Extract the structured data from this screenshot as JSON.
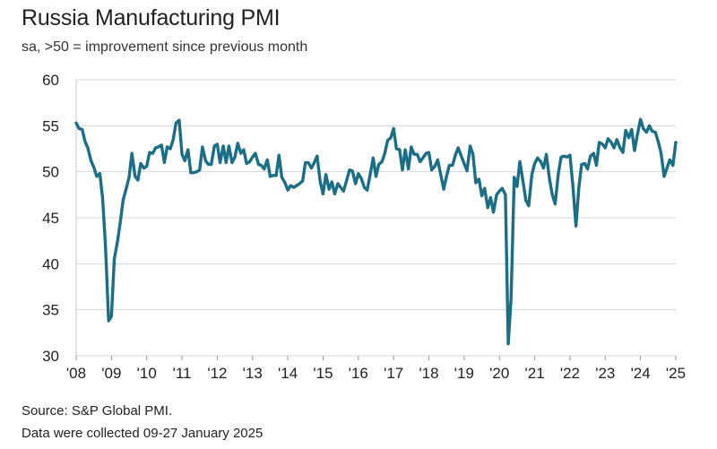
{
  "chart_data": {
    "type": "line",
    "title": "Russia Manufacturing PMI",
    "subtitle": "sa, >50 = improvement since previous month",
    "xlabel": "",
    "ylabel": "",
    "ylim": [
      30,
      60
    ],
    "yticks": [
      30,
      35,
      40,
      45,
      50,
      55,
      60
    ],
    "xlim": [
      2008.0,
      2025.0
    ],
    "xtick_values": [
      2008,
      2009,
      2010,
      2011,
      2012,
      2013,
      2014,
      2015,
      2016,
      2017,
      2018,
      2019,
      2020,
      2021,
      2022,
      2023,
      2024,
      2025
    ],
    "xtick_labels": [
      "'08",
      "'09",
      "'10",
      "'11",
      "'12",
      "'13",
      "'14",
      "'15",
      "'16",
      "'17",
      "'18",
      "'19",
      "'20",
      "'21",
      "'22",
      "'23",
      "'24",
      "'25"
    ],
    "grid": "horizontal",
    "line_color": "#1a6e85",
    "series": [
      {
        "name": "",
        "x": [
          2008.0,
          2008.08,
          2008.17,
          2008.25,
          2008.33,
          2008.42,
          2008.5,
          2008.58,
          2008.67,
          2008.75,
          2008.83,
          2008.92,
          2009.0,
          2009.08,
          2009.17,
          2009.25,
          2009.33,
          2009.42,
          2009.5,
          2009.58,
          2009.67,
          2009.75,
          2009.83,
          2009.92,
          2010.0,
          2010.08,
          2010.17,
          2010.25,
          2010.33,
          2010.42,
          2010.5,
          2010.58,
          2010.67,
          2010.75,
          2010.83,
          2010.92,
          2011.0,
          2011.08,
          2011.17,
          2011.25,
          2011.33,
          2011.42,
          2011.5,
          2011.58,
          2011.67,
          2011.75,
          2011.83,
          2011.92,
          2012.0,
          2012.08,
          2012.17,
          2012.25,
          2012.33,
          2012.42,
          2012.5,
          2012.58,
          2012.67,
          2012.75,
          2012.83,
          2012.92,
          2013.0,
          2013.08,
          2013.17,
          2013.25,
          2013.33,
          2013.42,
          2013.5,
          2013.58,
          2013.67,
          2013.75,
          2013.83,
          2013.92,
          2014.0,
          2014.08,
          2014.17,
          2014.25,
          2014.33,
          2014.42,
          2014.5,
          2014.58,
          2014.67,
          2014.75,
          2014.83,
          2014.92,
          2015.0,
          2015.08,
          2015.17,
          2015.25,
          2015.33,
          2015.42,
          2015.5,
          2015.58,
          2015.67,
          2015.75,
          2015.83,
          2015.92,
          2016.0,
          2016.08,
          2016.17,
          2016.25,
          2016.33,
          2016.42,
          2016.5,
          2016.58,
          2016.67,
          2016.75,
          2016.83,
          2016.92,
          2017.0,
          2017.08,
          2017.17,
          2017.25,
          2017.33,
          2017.42,
          2017.5,
          2017.58,
          2017.67,
          2017.75,
          2017.83,
          2017.92,
          2018.0,
          2018.08,
          2018.17,
          2018.25,
          2018.33,
          2018.42,
          2018.5,
          2018.58,
          2018.67,
          2018.75,
          2018.83,
          2018.92,
          2019.0,
          2019.08,
          2019.17,
          2019.25,
          2019.33,
          2019.42,
          2019.5,
          2019.58,
          2019.67,
          2019.75,
          2019.83,
          2019.92,
          2020.0,
          2020.08,
          2020.17,
          2020.25,
          2020.33,
          2020.42,
          2020.5,
          2020.58,
          2020.67,
          2020.75,
          2020.83,
          2020.92,
          2021.0,
          2021.08,
          2021.17,
          2021.25,
          2021.33,
          2021.42,
          2021.5,
          2021.58,
          2021.67,
          2021.75,
          2021.83,
          2021.92,
          2022.0,
          2022.08,
          2022.17,
          2022.25,
          2022.33,
          2022.42,
          2022.5,
          2022.58,
          2022.67,
          2022.75,
          2022.83,
          2022.92,
          2023.0,
          2023.08,
          2023.17,
          2023.25,
          2023.33,
          2023.42,
          2023.5,
          2023.58,
          2023.67,
          2023.75,
          2023.83,
          2023.92,
          2024.0,
          2024.08,
          2024.17,
          2024.25,
          2024.33,
          2024.42,
          2024.5,
          2024.58,
          2024.67,
          2024.75,
          2024.83,
          2024.92,
          2025.0
        ],
        "y": [
          55.3,
          54.7,
          54.6,
          53.3,
          52.6,
          51.2,
          50.5,
          49.5,
          49.8,
          47.1,
          42.0,
          33.8,
          34.3,
          40.5,
          42.4,
          44.5,
          46.9,
          48.2,
          49.4,
          52.0,
          49.5,
          49.1,
          50.9,
          50.4,
          50.6,
          52.1,
          52.0,
          52.6,
          52.7,
          52.9,
          51.0,
          52.7,
          52.5,
          53.5,
          55.3,
          55.6,
          51.9,
          51.2,
          52.4,
          49.9,
          49.9,
          50.0,
          50.2,
          52.7,
          51.2,
          50.8,
          50.8,
          52.8,
          53.0,
          51.0,
          52.8,
          51.0,
          52.8,
          51.0,
          51.6,
          53.1,
          52.0,
          52.4,
          50.9,
          51.1,
          51.6,
          52.0,
          50.8,
          50.7,
          50.3,
          51.3,
          49.5,
          49.6,
          49.6,
          51.8,
          49.4,
          48.8,
          48.0,
          48.5,
          48.3,
          48.5,
          48.7,
          49.0,
          51.0,
          51.0,
          50.4,
          51.0,
          51.7,
          48.9,
          47.6,
          49.7,
          48.1,
          48.9,
          47.6,
          48.7,
          48.3,
          47.9,
          49.1,
          50.2,
          50.1,
          48.7,
          49.8,
          49.3,
          48.3,
          48.0,
          49.6,
          51.5,
          49.5,
          50.8,
          51.1,
          52.0,
          53.4,
          53.7,
          54.7,
          52.5,
          52.4,
          50.2,
          52.4,
          50.3,
          52.7,
          51.9,
          51.9,
          51.1,
          51.5,
          52.0,
          52.1,
          50.2,
          50.6,
          51.3,
          49.8,
          48.1,
          49.5,
          50.7,
          50.7,
          51.8,
          52.6,
          51.7,
          50.9,
          50.1,
          52.8,
          51.9,
          48.8,
          49.2,
          47.4,
          48.2,
          46.1,
          47.2,
          45.6,
          47.5,
          47.9,
          48.2,
          47.5,
          31.3,
          36.2,
          49.4,
          48.4,
          51.1,
          48.9,
          46.9,
          46.3,
          49.7,
          50.9,
          51.5,
          51.1,
          50.4,
          51.9,
          49.2,
          47.5,
          46.5,
          49.8,
          51.6,
          51.7,
          51.6,
          51.8,
          48.6,
          44.1,
          48.2,
          50.8,
          50.9,
          50.3,
          51.7,
          52.0,
          50.7,
          53.2,
          53.0,
          52.6,
          53.6,
          53.2,
          52.6,
          53.5,
          52.6,
          52.1,
          54.5,
          53.7,
          54.6,
          52.3,
          54.2,
          55.7,
          54.7,
          54.3,
          55.0,
          54.4,
          54.3,
          53.3,
          52.1,
          49.5,
          50.4,
          51.3,
          50.7,
          53.2
        ]
      }
    ],
    "source": "Source: S&P Global PMI.",
    "note": "Data were collected 09-27 January 2025"
  }
}
